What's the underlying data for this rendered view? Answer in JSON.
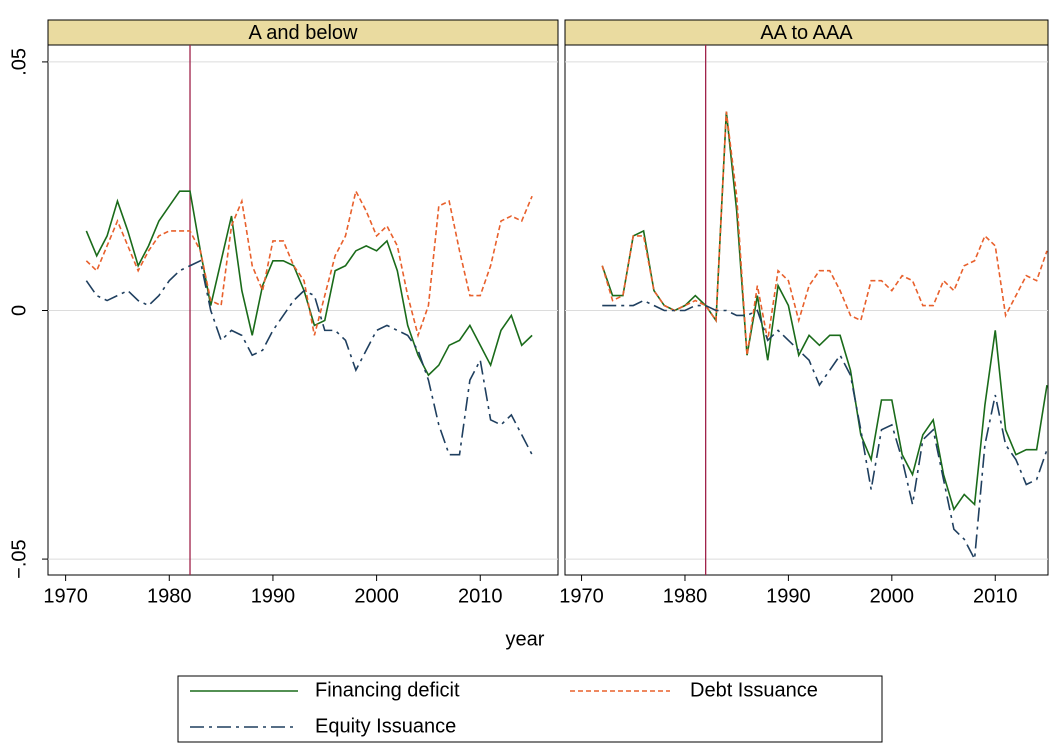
{
  "xlabel": "year",
  "chart_data": [
    {
      "type": "line",
      "title": "A and below",
      "vline": 1982,
      "vline_color": "#a0224a",
      "x": [
        1972,
        1973,
        1974,
        1975,
        1976,
        1977,
        1978,
        1979,
        1980,
        1981,
        1982,
        1983,
        1984,
        1985,
        1986,
        1987,
        1988,
        1989,
        1990,
        1991,
        1992,
        1993,
        1994,
        1995,
        1996,
        1997,
        1998,
        1999,
        2000,
        2001,
        2002,
        2003,
        2004,
        2005,
        2006,
        2007,
        2008,
        2009,
        2010,
        2011,
        2012,
        2013,
        2014,
        2015
      ],
      "xlim": [
        1968.3,
        2017.5
      ],
      "xticks": [
        1970,
        1980,
        1990,
        2000,
        2010
      ],
      "ylim": [
        -0.0532,
        0.0534
      ],
      "yticks": [
        {
          "value": -0.05,
          "label": "−.05"
        },
        0,
        {
          "value": 0.05,
          "label": ".05"
        }
      ],
      "grid": true,
      "series": [
        {
          "name": "Financing deficit",
          "color": "#1a6b1a",
          "dash": "solid",
          "values": [
            0.016,
            0.011,
            0.015,
            0.022,
            0.016,
            0.009,
            0.013,
            0.018,
            0.021,
            0.024,
            0.024,
            0.012,
            0.001,
            0.01,
            0.019,
            0.004,
            -0.005,
            0.005,
            0.01,
            0.01,
            0.009,
            0.004,
            -0.003,
            -0.002,
            0.008,
            0.009,
            0.012,
            0.013,
            0.012,
            0.014,
            0.008,
            -0.003,
            -0.009,
            -0.013,
            -0.011,
            -0.007,
            -0.006,
            -0.003,
            -0.007,
            -0.011,
            -0.004,
            -0.001,
            -0.007,
            -0.005
          ]
        },
        {
          "name": "Debt Issuance",
          "color": "#e8602c",
          "dash": "dash",
          "values": [
            0.01,
            0.008,
            0.013,
            0.018,
            0.013,
            0.008,
            0.012,
            0.015,
            0.016,
            0.016,
            0.016,
            0.012,
            0.002,
            0.001,
            0.017,
            0.022,
            0.009,
            0.004,
            0.014,
            0.014,
            0.009,
            0.006,
            -0.005,
            0.003,
            0.011,
            0.015,
            0.024,
            0.02,
            0.015,
            0.017,
            0.013,
            0.003,
            -0.005,
            0.001,
            0.021,
            0.022,
            0.012,
            0.003,
            0.003,
            0.009,
            0.018,
            0.019,
            0.018,
            0.023
          ]
        },
        {
          "name": "Equity Issuance",
          "color": "#1f3f5f",
          "dash": "dashdot",
          "values": [
            0.006,
            0.003,
            0.002,
            0.003,
            0.004,
            0.002,
            0.001,
            0.003,
            0.006,
            0.008,
            0.009,
            0.01,
            0.0,
            -0.006,
            -0.004,
            -0.005,
            -0.009,
            -0.008,
            -0.004,
            -0.001,
            0.002,
            0.004,
            0.003,
            -0.004,
            -0.004,
            -0.006,
            -0.012,
            -0.008,
            -0.004,
            -0.003,
            -0.004,
            -0.005,
            -0.008,
            -0.014,
            -0.023,
            -0.029,
            -0.029,
            -0.014,
            -0.01,
            -0.022,
            -0.023,
            -0.021,
            -0.025,
            -0.029
          ]
        }
      ]
    },
    {
      "type": "line",
      "title": "AA to AAA",
      "vline": 1982,
      "vline_color": "#a0224a",
      "x": [
        1972,
        1973,
        1974,
        1975,
        1976,
        1977,
        1978,
        1979,
        1980,
        1981,
        1982,
        1983,
        1984,
        1985,
        1986,
        1987,
        1988,
        1989,
        1990,
        1991,
        1992,
        1993,
        1994,
        1995,
        1996,
        1997,
        1998,
        1999,
        2000,
        2001,
        2002,
        2003,
        2004,
        2005,
        2006,
        2007,
        2008,
        2009,
        2010,
        2011,
        2012,
        2013,
        2014,
        2015
      ],
      "xlim": [
        1968.4,
        2015.1
      ],
      "xticks": [
        1970,
        1980,
        1990,
        2000,
        2010
      ],
      "ylim": [
        -0.0532,
        0.0534
      ],
      "yticks": [
        -0.05,
        0,
        0.05
      ],
      "grid": true,
      "series": [
        {
          "color": "#1a6b1a",
          "dash": "solid",
          "values": [
            0.009,
            0.003,
            0.003,
            0.015,
            0.016,
            0.004,
            0.001,
            0.0,
            0.001,
            0.003,
            0.001,
            -0.002,
            0.04,
            0.02,
            -0.009,
            0.003,
            -0.01,
            0.005,
            0.001,
            -0.009,
            -0.005,
            -0.007,
            -0.005,
            -0.005,
            -0.012,
            -0.025,
            -0.03,
            -0.018,
            -0.018,
            -0.029,
            -0.033,
            -0.025,
            -0.022,
            -0.033,
            -0.04,
            -0.037,
            -0.039,
            -0.019,
            -0.004,
            -0.024,
            -0.029,
            -0.028,
            -0.028,
            -0.015
          ]
        },
        {
          "color": "#e8602c",
          "dash": "dash",
          "values": [
            0.009,
            0.002,
            0.003,
            0.015,
            0.015,
            0.004,
            0.001,
            0.0,
            0.001,
            0.002,
            0.001,
            -0.002,
            0.04,
            0.023,
            -0.009,
            0.005,
            -0.006,
            0.008,
            0.006,
            -0.002,
            0.005,
            0.008,
            0.008,
            0.004,
            -0.001,
            -0.002,
            0.006,
            0.006,
            0.004,
            0.007,
            0.006,
            0.001,
            0.001,
            0.006,
            0.004,
            0.009,
            0.01,
            0.015,
            0.013,
            -0.001,
            0.003,
            0.007,
            0.006,
            0.012
          ]
        },
        {
          "color": "#1f3f5f",
          "dash": "dashdot",
          "values": [
            0.001,
            0.001,
            0.001,
            0.001,
            0.002,
            0.001,
            0.0,
            0.0,
            0.0,
            0.001,
            0.001,
            0.0,
            0.0,
            -0.001,
            -0.001,
            0.0,
            -0.006,
            -0.004,
            -0.006,
            -0.008,
            -0.01,
            -0.015,
            -0.012,
            -0.009,
            -0.013,
            -0.024,
            -0.036,
            -0.024,
            -0.023,
            -0.03,
            -0.039,
            -0.026,
            -0.024,
            -0.034,
            -0.044,
            -0.046,
            -0.05,
            -0.027,
            -0.017,
            -0.027,
            -0.03,
            -0.035,
            -0.034,
            -0.028
          ]
        }
      ]
    }
  ]
}
